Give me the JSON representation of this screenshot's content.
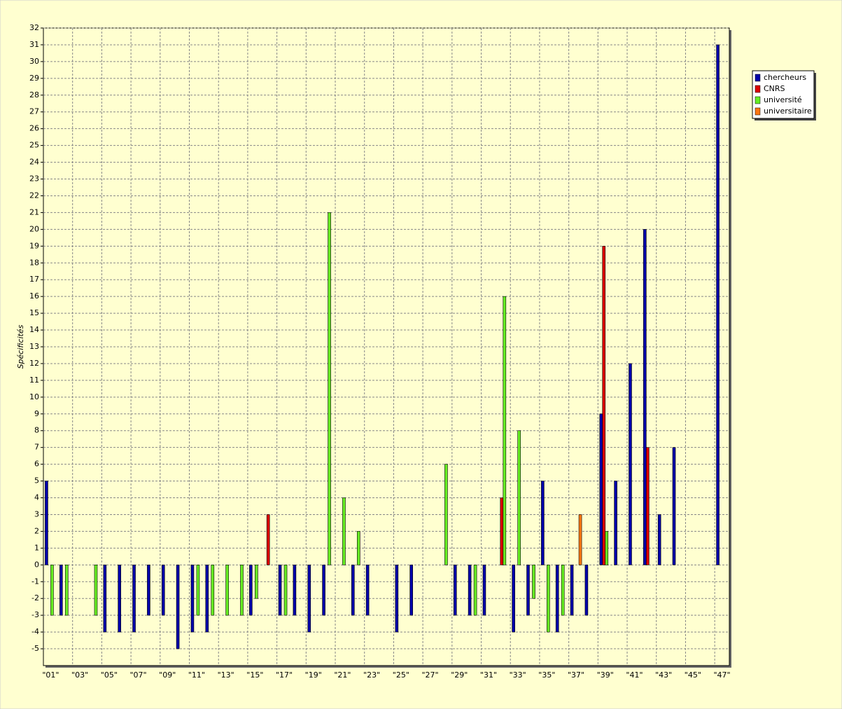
{
  "chart_data": {
    "type": "bar",
    "y_label": "Spécificités",
    "categories": [
      "\"01\"",
      null,
      "\"03\"",
      null,
      "\"05\"",
      null,
      "\"07\"",
      null,
      "\"09\"",
      null,
      "\"11\"",
      null,
      "\"13\"",
      null,
      "\"15\"",
      null,
      "\"17\"",
      null,
      "\"19\"",
      null,
      "\"21\"",
      null,
      "\"23\"",
      null,
      "\"25\"",
      null,
      "\"27\"",
      null,
      "\"29\"",
      null,
      "\"31\"",
      null,
      "\"33\"",
      null,
      "\"35\"",
      null,
      "\"37\"",
      null,
      "\"39\"",
      null,
      "\"41\"",
      null,
      "\"43\"",
      null,
      "\"45\"",
      null,
      "\"47\""
    ],
    "series": [
      {
        "name": "chercheurs",
        "color": "#0000aa",
        "values": [
          5,
          -3,
          0,
          0,
          -4,
          -4,
          -4,
          -3,
          -3,
          -5,
          -4,
          -4,
          0,
          0,
          -3,
          0,
          -3,
          -3,
          -4,
          -3,
          0,
          -3,
          -3,
          0,
          -4,
          -3,
          0,
          0,
          -3,
          -3,
          -3,
          0,
          -4,
          -3,
          5,
          -4,
          -3,
          -3,
          9,
          5,
          12,
          20,
          3,
          7,
          0,
          0,
          31
        ]
      },
      {
        "name": "CNRS",
        "color": "#dd0000",
        "values": [
          0,
          0,
          0,
          0,
          0,
          0,
          0,
          0,
          0,
          0,
          0,
          0,
          0,
          0,
          0,
          3,
          0,
          0,
          0,
          0,
          0,
          0,
          0,
          0,
          0,
          0,
          0,
          0,
          0,
          0,
          0,
          4,
          0,
          0,
          0,
          0,
          0,
          0,
          19,
          0,
          0,
          7,
          0,
          0,
          0,
          0,
          0
        ]
      },
      {
        "name": "université",
        "color": "#66ee22",
        "values": [
          -3,
          -3,
          0,
          -3,
          0,
          0,
          0,
          0,
          0,
          0,
          -3,
          -3,
          -3,
          -3,
          -2,
          0,
          -3,
          0,
          0,
          21,
          4,
          2,
          0,
          0,
          0,
          0,
          0,
          6,
          0,
          -3,
          0,
          16,
          8,
          -2,
          -4,
          -3,
          0,
          0,
          2,
          0,
          0,
          0,
          0,
          0,
          0,
          0,
          0
        ]
      },
      {
        "name": "universitaire",
        "color": "#ff7711",
        "values": [
          0,
          0,
          0,
          0,
          0,
          0,
          0,
          0,
          0,
          0,
          0,
          0,
          0,
          0,
          0,
          0,
          0,
          0,
          0,
          0,
          0,
          0,
          0,
          0,
          0,
          0,
          0,
          0,
          0,
          0,
          0,
          0,
          0,
          0,
          0,
          0,
          3,
          0,
          0,
          0,
          0,
          0,
          0,
          0,
          0,
          0,
          0
        ]
      }
    ],
    "ylim": [
      -6,
      32
    ],
    "yticks": [
      -5,
      -4,
      -3,
      -2,
      -1,
      0,
      1,
      2,
      3,
      4,
      5,
      6,
      7,
      8,
      9,
      10,
      11,
      12,
      13,
      14,
      15,
      16,
      17,
      18,
      19,
      20,
      21,
      22,
      23,
      24,
      25,
      26,
      27,
      28,
      29,
      30,
      31,
      32
    ],
    "grid": true,
    "legend": "top-right"
  }
}
